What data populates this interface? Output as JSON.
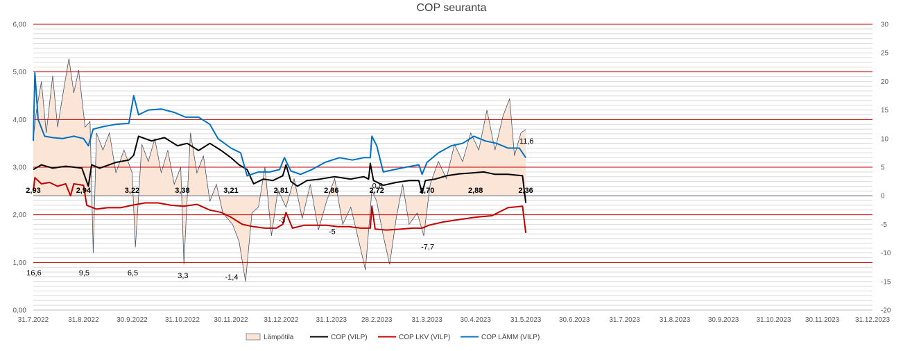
{
  "chart_data": {
    "type": "line",
    "title": "COP seuranta",
    "xlabel": "",
    "ylabel": "",
    "x_range": [
      "2022-07-31",
      "2023-12-31"
    ],
    "x_ticks": [
      "31.7.2022",
      "31.8.2022",
      "30.9.2022",
      "31.10.2022",
      "30.11.2022",
      "31.12.2022",
      "31.1.2023",
      "28.2.2023",
      "31.3.2023",
      "30.4.2023",
      "31.5.2023",
      "30.6.2023",
      "31.7.2023",
      "31.8.2023",
      "30.9.2023",
      "31.10.2023",
      "30.11.2023",
      "31.12.2023"
    ],
    "ylim_left": [
      0,
      6
    ],
    "y_ticks_left": [
      "0,00",
      "1,00",
      "2,00",
      "3,00",
      "4,00",
      "5,00",
      "6,00"
    ],
    "ylim_right": [
      -20,
      30
    ],
    "y_ticks_right": [
      "-20",
      "-15",
      "-10",
      "-5",
      "0",
      "5",
      "10",
      "15",
      "20",
      "25",
      "30"
    ],
    "grid": "major lines red, minor lines light gray",
    "legend_position": "bottom",
    "colors": {
      "temp_fill": "#fbe5d6",
      "temp_line": "#44546a",
      "cop": "#000000",
      "cop_lkv": "#c00000",
      "cop_lamm": "#0070c0",
      "major_grid": "#c00000",
      "minor_grid": "#d9d9d9",
      "zero_line": "#44546a"
    },
    "series": [
      {
        "name": "Lämpötila",
        "axis": "right",
        "style": "area",
        "points": [
          [
            "2022-07-31",
            10
          ],
          [
            "2022-08-02",
            15
          ],
          [
            "2022-08-05",
            20
          ],
          [
            "2022-08-08",
            11
          ],
          [
            "2022-08-12",
            21
          ],
          [
            "2022-08-15",
            12
          ],
          [
            "2022-08-19",
            19
          ],
          [
            "2022-08-22",
            24
          ],
          [
            "2022-08-25",
            18
          ],
          [
            "2022-08-28",
            22
          ],
          [
            "2022-09-01",
            12
          ],
          [
            "2022-09-04",
            13
          ],
          [
            "2022-09-06",
            -10
          ],
          [
            "2022-09-08",
            11
          ],
          [
            "2022-09-12",
            8
          ],
          [
            "2022-09-16",
            11
          ],
          [
            "2022-09-20",
            4
          ],
          [
            "2022-09-25",
            8
          ],
          [
            "2022-09-30",
            4
          ],
          [
            "2022-10-02",
            -9
          ],
          [
            "2022-10-06",
            9
          ],
          [
            "2022-10-10",
            6
          ],
          [
            "2022-10-14",
            10
          ],
          [
            "2022-10-18",
            4
          ],
          [
            "2022-10-22",
            8
          ],
          [
            "2022-10-26",
            2
          ],
          [
            "2022-10-30",
            5
          ],
          [
            "2022-11-01",
            -12
          ],
          [
            "2022-11-05",
            11
          ],
          [
            "2022-11-09",
            4
          ],
          [
            "2022-11-13",
            7
          ],
          [
            "2022-11-17",
            -1
          ],
          [
            "2022-11-21",
            2
          ],
          [
            "2022-11-25",
            -3
          ],
          [
            "2022-11-28",
            -4
          ],
          [
            "2022-12-01",
            -5
          ],
          [
            "2022-12-05",
            -8
          ],
          [
            "2022-12-09",
            -15
          ],
          [
            "2022-12-13",
            -3
          ],
          [
            "2022-12-17",
            -2
          ],
          [
            "2022-12-21",
            5
          ],
          [
            "2022-12-25",
            -7
          ],
          [
            "2022-12-29",
            1
          ],
          [
            "2023-01-03",
            -2
          ],
          [
            "2023-01-08",
            3
          ],
          [
            "2023-01-13",
            -4
          ],
          [
            "2023-01-18",
            2
          ],
          [
            "2023-01-23",
            -6
          ],
          [
            "2023-01-28",
            -1
          ],
          [
            "2023-02-02",
            3
          ],
          [
            "2023-02-07",
            -5
          ],
          [
            "2023-02-12",
            -2
          ],
          [
            "2023-02-17",
            -8
          ],
          [
            "2023-02-21",
            -13
          ],
          [
            "2023-02-25",
            1
          ],
          [
            "2023-02-28",
            -1
          ],
          [
            "2023-03-04",
            -7
          ],
          [
            "2023-03-08",
            -12
          ],
          [
            "2023-03-12",
            -4
          ],
          [
            "2023-03-16",
            2
          ],
          [
            "2023-03-20",
            -5
          ],
          [
            "2023-03-25",
            -3
          ],
          [
            "2023-03-29",
            -7
          ],
          [
            "2023-04-02",
            2
          ],
          [
            "2023-04-07",
            6
          ],
          [
            "2023-04-12",
            3
          ],
          [
            "2023-04-17",
            9
          ],
          [
            "2023-04-22",
            6
          ],
          [
            "2023-04-27",
            11
          ],
          [
            "2023-05-02",
            8
          ],
          [
            "2023-05-07",
            15
          ],
          [
            "2023-05-12",
            8
          ],
          [
            "2023-05-17",
            14
          ],
          [
            "2023-05-21",
            17
          ],
          [
            "2023-05-24",
            7
          ],
          [
            "2023-05-28",
            11
          ],
          [
            "2023-05-31",
            11.6
          ]
        ]
      },
      {
        "name": "COP (VILP)",
        "axis": "left",
        "style": "line",
        "points": [
          [
            "2022-07-31",
            2.95
          ],
          [
            "2022-08-05",
            3.05
          ],
          [
            "2022-08-12",
            2.98
          ],
          [
            "2022-08-20",
            3.02
          ],
          [
            "2022-08-30",
            2.98
          ],
          [
            "2022-09-03",
            2.6
          ],
          [
            "2022-09-05",
            3.05
          ],
          [
            "2022-09-10",
            2.98
          ],
          [
            "2022-09-20",
            3.1
          ],
          [
            "2022-09-28",
            3.15
          ],
          [
            "2022-10-01",
            3.25
          ],
          [
            "2022-10-04",
            3.65
          ],
          [
            "2022-10-12",
            3.55
          ],
          [
            "2022-10-20",
            3.62
          ],
          [
            "2022-10-28",
            3.45
          ],
          [
            "2022-11-03",
            3.5
          ],
          [
            "2022-11-10",
            3.35
          ],
          [
            "2022-11-17",
            3.5
          ],
          [
            "2022-11-24",
            3.35
          ],
          [
            "2022-11-30",
            3.2
          ],
          [
            "2022-12-05",
            3.05
          ],
          [
            "2022-12-10",
            2.95
          ],
          [
            "2022-12-14",
            2.65
          ],
          [
            "2022-12-20",
            2.75
          ],
          [
            "2022-12-26",
            2.72
          ],
          [
            "2023-01-01",
            2.82
          ],
          [
            "2023-01-03",
            3.05
          ],
          [
            "2023-01-06",
            2.7
          ],
          [
            "2023-01-10",
            2.6
          ],
          [
            "2023-01-16",
            2.72
          ],
          [
            "2023-01-24",
            2.75
          ],
          [
            "2023-02-02",
            2.8
          ],
          [
            "2023-02-12",
            2.75
          ],
          [
            "2023-02-20",
            2.8
          ],
          [
            "2023-02-23",
            2.75
          ],
          [
            "2023-02-24",
            3.08
          ],
          [
            "2023-02-26",
            2.72
          ],
          [
            "2023-03-04",
            2.62
          ],
          [
            "2023-03-12",
            2.68
          ],
          [
            "2023-03-20",
            2.72
          ],
          [
            "2023-03-26",
            2.72
          ],
          [
            "2023-03-28",
            2.45
          ],
          [
            "2023-03-30",
            2.72
          ],
          [
            "2023-04-05",
            2.75
          ],
          [
            "2023-04-12",
            2.82
          ],
          [
            "2023-04-20",
            2.86
          ],
          [
            "2023-04-28",
            2.88
          ],
          [
            "2023-05-05",
            2.9
          ],
          [
            "2023-05-12",
            2.85
          ],
          [
            "2023-05-20",
            2.85
          ],
          [
            "2023-05-29",
            2.82
          ],
          [
            "2023-05-31",
            2.25
          ]
        ]
      },
      {
        "name": "COP LKV (VILP)",
        "axis": "left",
        "style": "line",
        "points": [
          [
            "2022-07-31",
            2.5
          ],
          [
            "2022-08-01",
            2.78
          ],
          [
            "2022-08-05",
            2.65
          ],
          [
            "2022-08-10",
            2.68
          ],
          [
            "2022-08-15",
            2.6
          ],
          [
            "2022-08-20",
            2.65
          ],
          [
            "2022-08-23",
            2.4
          ],
          [
            "2022-08-25",
            2.65
          ],
          [
            "2022-08-31",
            2.62
          ],
          [
            "2022-09-02",
            2.2
          ],
          [
            "2022-09-08",
            2.12
          ],
          [
            "2022-09-15",
            2.15
          ],
          [
            "2022-09-23",
            2.15
          ],
          [
            "2022-09-30",
            2.2
          ],
          [
            "2022-10-08",
            2.25
          ],
          [
            "2022-10-16",
            2.25
          ],
          [
            "2022-10-24",
            2.2
          ],
          [
            "2022-11-01",
            2.18
          ],
          [
            "2022-11-09",
            2.22
          ],
          [
            "2022-11-17",
            2.1
          ],
          [
            "2022-11-24",
            2.05
          ],
          [
            "2022-11-30",
            1.95
          ],
          [
            "2022-12-07",
            1.8
          ],
          [
            "2022-12-14",
            1.75
          ],
          [
            "2022-12-21",
            1.72
          ],
          [
            "2022-12-28",
            1.72
          ],
          [
            "2023-01-01",
            1.8
          ],
          [
            "2023-01-03",
            2.05
          ],
          [
            "2023-01-07",
            1.72
          ],
          [
            "2023-01-14",
            1.78
          ],
          [
            "2023-01-21",
            1.78
          ],
          [
            "2023-01-28",
            1.78
          ],
          [
            "2023-02-04",
            1.75
          ],
          [
            "2023-02-11",
            1.75
          ],
          [
            "2023-02-18",
            1.72
          ],
          [
            "2023-02-24",
            1.72
          ],
          [
            "2023-02-25",
            2.18
          ],
          [
            "2023-02-27",
            1.7
          ],
          [
            "2023-03-06",
            1.68
          ],
          [
            "2023-03-15",
            1.7
          ],
          [
            "2023-03-22",
            1.72
          ],
          [
            "2023-03-28",
            1.72
          ],
          [
            "2023-04-01",
            1.78
          ],
          [
            "2023-04-10",
            1.85
          ],
          [
            "2023-04-20",
            1.9
          ],
          [
            "2023-04-30",
            1.95
          ],
          [
            "2023-05-10",
            1.98
          ],
          [
            "2023-05-20",
            2.15
          ],
          [
            "2023-05-29",
            2.18
          ],
          [
            "2023-05-31",
            1.62
          ]
        ]
      },
      {
        "name": "COP LÄMM (VILP)",
        "axis": "left",
        "style": "line",
        "points": [
          [
            "2022-07-31",
            3.55
          ],
          [
            "2022-08-01",
            4.98
          ],
          [
            "2022-08-03",
            4.0
          ],
          [
            "2022-08-07",
            3.65
          ],
          [
            "2022-08-12",
            3.62
          ],
          [
            "2022-08-18",
            3.6
          ],
          [
            "2022-08-25",
            3.65
          ],
          [
            "2022-08-31",
            3.6
          ],
          [
            "2022-09-03",
            3.45
          ],
          [
            "2022-09-06",
            3.8
          ],
          [
            "2022-09-12",
            3.85
          ],
          [
            "2022-09-20",
            3.9
          ],
          [
            "2022-09-28",
            3.92
          ],
          [
            "2022-10-01",
            4.5
          ],
          [
            "2022-10-04",
            4.1
          ],
          [
            "2022-10-10",
            4.2
          ],
          [
            "2022-10-18",
            4.22
          ],
          [
            "2022-10-26",
            4.15
          ],
          [
            "2022-11-02",
            4.05
          ],
          [
            "2022-11-10",
            4.05
          ],
          [
            "2022-11-17",
            3.9
          ],
          [
            "2022-11-22",
            3.6
          ],
          [
            "2022-11-30",
            3.4
          ],
          [
            "2022-12-06",
            3.3
          ],
          [
            "2022-12-10",
            2.82
          ],
          [
            "2022-12-17",
            2.9
          ],
          [
            "2022-12-24",
            2.9
          ],
          [
            "2022-12-30",
            2.95
          ],
          [
            "2023-01-02",
            3.2
          ],
          [
            "2023-01-06",
            2.92
          ],
          [
            "2023-01-12",
            2.85
          ],
          [
            "2023-01-19",
            2.95
          ],
          [
            "2023-01-27",
            3.1
          ],
          [
            "2023-02-05",
            3.2
          ],
          [
            "2023-02-13",
            3.15
          ],
          [
            "2023-02-20",
            3.2
          ],
          [
            "2023-02-24",
            3.2
          ],
          [
            "2023-02-25",
            3.65
          ],
          [
            "2023-02-28",
            3.45
          ],
          [
            "2023-03-04",
            2.9
          ],
          [
            "2023-03-11",
            2.95
          ],
          [
            "2023-03-18",
            3.0
          ],
          [
            "2023-03-26",
            3.05
          ],
          [
            "2023-03-28",
            2.85
          ],
          [
            "2023-03-31",
            3.1
          ],
          [
            "2023-04-07",
            3.3
          ],
          [
            "2023-04-15",
            3.45
          ],
          [
            "2023-04-22",
            3.5
          ],
          [
            "2023-04-29",
            3.65
          ],
          [
            "2023-05-06",
            3.55
          ],
          [
            "2023-05-13",
            3.5
          ],
          [
            "2023-05-20",
            3.4
          ],
          [
            "2023-05-27",
            3.4
          ],
          [
            "2023-05-31",
            3.2
          ]
        ]
      }
    ],
    "cop_labels": [
      {
        "x": "2022-07-31",
        "y": 2.93,
        "text": "2,93"
      },
      {
        "x": "2022-08-31",
        "y": 2.94,
        "text": "2,94"
      },
      {
        "x": "2022-09-30",
        "y": 3.22,
        "text": "3,22"
      },
      {
        "x": "2022-10-31",
        "y": 3.38,
        "text": "3,38"
      },
      {
        "x": "2022-11-30",
        "y": 3.21,
        "text": "3,21"
      },
      {
        "x": "2022-12-31",
        "y": 2.81,
        "text": "2,81"
      },
      {
        "x": "2023-01-31",
        "y": 2.86,
        "text": "2,86"
      },
      {
        "x": "2023-02-28",
        "y": 2.72,
        "text": "2,72"
      },
      {
        "x": "2023-03-31",
        "y": 2.7,
        "text": "2,70"
      },
      {
        "x": "2023-04-30",
        "y": 2.88,
        "text": "2,88"
      },
      {
        "x": "2023-05-31",
        "y": 2.36,
        "text": "2,36"
      }
    ],
    "temp_labels": [
      {
        "x": "2022-07-31",
        "y": 16.6,
        "text": "16,6"
      },
      {
        "x": "2022-08-31",
        "y": 9.5,
        "text": "9,5"
      },
      {
        "x": "2022-09-30",
        "y": 6.5,
        "text": "6,5"
      },
      {
        "x": "2022-10-31",
        "y": 3.3,
        "text": "3,3"
      },
      {
        "x": "2022-11-30",
        "y": -1.4,
        "text": "-1,4"
      },
      {
        "x": "2022-12-31",
        "y": -3,
        "text": "-3"
      },
      {
        "x": "2023-01-31",
        "y": -5,
        "text": "-5"
      },
      {
        "x": "2023-02-28",
        "y": 0.8,
        "text": "0,8"
      },
      {
        "x": "2023-03-31",
        "y": -7.7,
        "text": "-7,7"
      },
      {
        "x": "2023-05-31",
        "y": 11.6,
        "text": "11,6"
      }
    ]
  }
}
